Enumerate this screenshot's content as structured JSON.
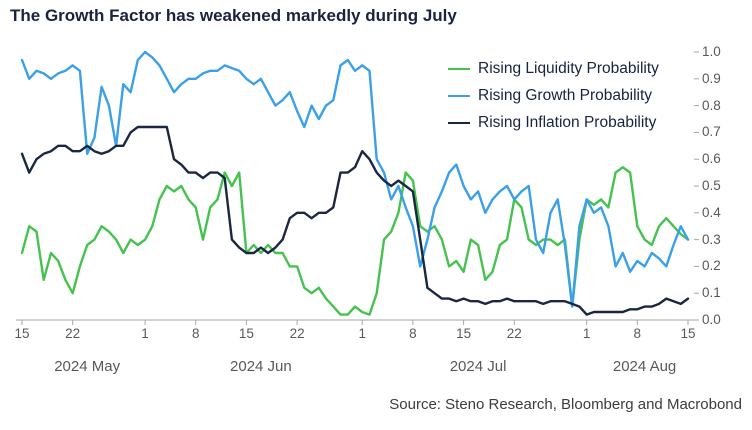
{
  "source_text": "Source: Steno Research, Bloomberg and Macrobond",
  "colors": {
    "title": "#19233f",
    "axis": "#a6a6a6",
    "tick_label": "#595959",
    "source_text": "#3c3c3c"
  },
  "chart_data": {
    "type": "line",
    "title": "The Growth Factor has weakened markedly during July",
    "x_start_date": "2024-05-15",
    "x_end_date": "2024-08-15",
    "x_unit": "days from 2024-05-15, one value per day",
    "ylim": [
      0.0,
      1.0
    ],
    "grid": false,
    "legend_position": "top-right",
    "y_ticks": [
      "1.0",
      "0.9",
      "0.8",
      "0.7",
      "0.6",
      "0.5",
      "0.4",
      "0.3",
      "0.2",
      "0.1",
      "0.0"
    ],
    "x_ticks": [
      {
        "label": "15",
        "day": 0
      },
      {
        "label": "22",
        "day": 7
      },
      {
        "label": "1",
        "day": 17
      },
      {
        "label": "8",
        "day": 24
      },
      {
        "label": "15",
        "day": 31
      },
      {
        "label": "22",
        "day": 38
      },
      {
        "label": "1",
        "day": 47
      },
      {
        "label": "8",
        "day": 54
      },
      {
        "label": "15",
        "day": 61
      },
      {
        "label": "22",
        "day": 68
      },
      {
        "label": "1",
        "day": 78
      },
      {
        "label": "8",
        "day": 85
      },
      {
        "label": "15",
        "day": 92
      }
    ],
    "month_labels": [
      {
        "label": "2024 May",
        "day": 9
      },
      {
        "label": "2024 Jun",
        "day": 33
      },
      {
        "label": "2024 Jul",
        "day": 63
      },
      {
        "label": "2024 Aug",
        "day": 86
      }
    ],
    "series": [
      {
        "name": "Rising Liquidity Probability",
        "color": "#45c24f",
        "values": [
          0.25,
          0.35,
          0.33,
          0.15,
          0.25,
          0.22,
          0.15,
          0.1,
          0.2,
          0.28,
          0.3,
          0.35,
          0.33,
          0.3,
          0.25,
          0.3,
          0.28,
          0.3,
          0.35,
          0.45,
          0.5,
          0.48,
          0.5,
          0.45,
          0.42,
          0.3,
          0.42,
          0.45,
          0.55,
          0.5,
          0.55,
          0.25,
          0.28,
          0.25,
          0.28,
          0.25,
          0.25,
          0.2,
          0.2,
          0.12,
          0.1,
          0.12,
          0.08,
          0.05,
          0.02,
          0.02,
          0.05,
          0.03,
          0.02,
          0.1,
          0.3,
          0.33,
          0.4,
          0.55,
          0.52,
          0.35,
          0.33,
          0.35,
          0.3,
          0.2,
          0.22,
          0.18,
          0.3,
          0.28,
          0.15,
          0.18,
          0.28,
          0.3,
          0.45,
          0.42,
          0.3,
          0.28,
          0.3,
          0.3,
          0.28,
          0.3,
          0.05,
          0.3,
          0.45,
          0.43,
          0.45,
          0.42,
          0.55,
          0.57,
          0.55,
          0.35,
          0.3,
          0.28,
          0.35,
          0.38,
          0.35,
          0.32,
          0.3
        ]
      },
      {
        "name": "Rising Growth Probability",
        "color": "#3ba0e8",
        "values": [
          0.97,
          0.9,
          0.93,
          0.92,
          0.9,
          0.92,
          0.93,
          0.95,
          0.93,
          0.62,
          0.68,
          0.87,
          0.8,
          0.65,
          0.88,
          0.85,
          0.97,
          1.0,
          0.98,
          0.95,
          0.9,
          0.85,
          0.88,
          0.9,
          0.9,
          0.92,
          0.93,
          0.93,
          0.95,
          0.94,
          0.93,
          0.9,
          0.88,
          0.9,
          0.85,
          0.8,
          0.82,
          0.85,
          0.78,
          0.72,
          0.8,
          0.75,
          0.8,
          0.82,
          0.95,
          0.97,
          0.93,
          0.95,
          0.93,
          0.6,
          0.55,
          0.45,
          0.5,
          0.42,
          0.35,
          0.2,
          0.3,
          0.42,
          0.48,
          0.55,
          0.58,
          0.5,
          0.45,
          0.48,
          0.4,
          0.45,
          0.48,
          0.5,
          0.45,
          0.48,
          0.5,
          0.3,
          0.25,
          0.4,
          0.45,
          0.28,
          0.05,
          0.35,
          0.45,
          0.4,
          0.42,
          0.35,
          0.2,
          0.25,
          0.18,
          0.22,
          0.2,
          0.25,
          0.23,
          0.2,
          0.28,
          0.35,
          0.3
        ]
      },
      {
        "name": "Rising Inflation Probability",
        "color": "#1a2742",
        "values": [
          0.62,
          0.55,
          0.6,
          0.62,
          0.63,
          0.65,
          0.65,
          0.63,
          0.63,
          0.65,
          0.63,
          0.62,
          0.63,
          0.65,
          0.65,
          0.7,
          0.72,
          0.72,
          0.72,
          0.72,
          0.72,
          0.6,
          0.58,
          0.55,
          0.55,
          0.53,
          0.55,
          0.55,
          0.53,
          0.3,
          0.27,
          0.25,
          0.25,
          0.27,
          0.25,
          0.27,
          0.3,
          0.38,
          0.4,
          0.4,
          0.38,
          0.4,
          0.4,
          0.42,
          0.55,
          0.55,
          0.57,
          0.63,
          0.6,
          0.55,
          0.52,
          0.5,
          0.52,
          0.5,
          0.48,
          0.3,
          0.12,
          0.1,
          0.08,
          0.08,
          0.07,
          0.08,
          0.07,
          0.07,
          0.06,
          0.07,
          0.07,
          0.08,
          0.07,
          0.07,
          0.07,
          0.07,
          0.06,
          0.07,
          0.07,
          0.07,
          0.06,
          0.05,
          0.02,
          0.03,
          0.03,
          0.03,
          0.03,
          0.03,
          0.04,
          0.04,
          0.05,
          0.05,
          0.06,
          0.08,
          0.07,
          0.06,
          0.08
        ]
      }
    ]
  }
}
